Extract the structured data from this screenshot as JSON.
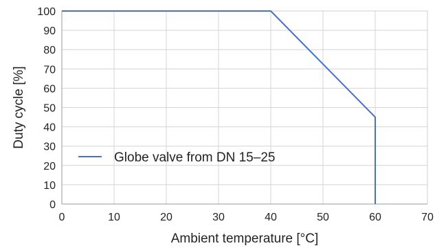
{
  "chart_data": {
    "type": "line",
    "title": "",
    "xlabel": "Ambient temperature [°C]",
    "ylabel": "Duty cycle [%]",
    "xlim": [
      0,
      70
    ],
    "ylim": [
      0,
      100
    ],
    "x_ticks": [
      0,
      10,
      20,
      30,
      40,
      50,
      60,
      70
    ],
    "y_ticks": [
      0,
      10,
      20,
      30,
      40,
      50,
      60,
      70,
      80,
      90,
      100
    ],
    "grid": true,
    "legend_position": "lower-left",
    "series": [
      {
        "name": "Globe valve from DN 15–25",
        "color": "#4472c4",
        "points": [
          [
            0,
            100
          ],
          [
            40,
            100
          ],
          [
            60,
            45
          ],
          [
            60,
            0
          ]
        ]
      }
    ]
  }
}
